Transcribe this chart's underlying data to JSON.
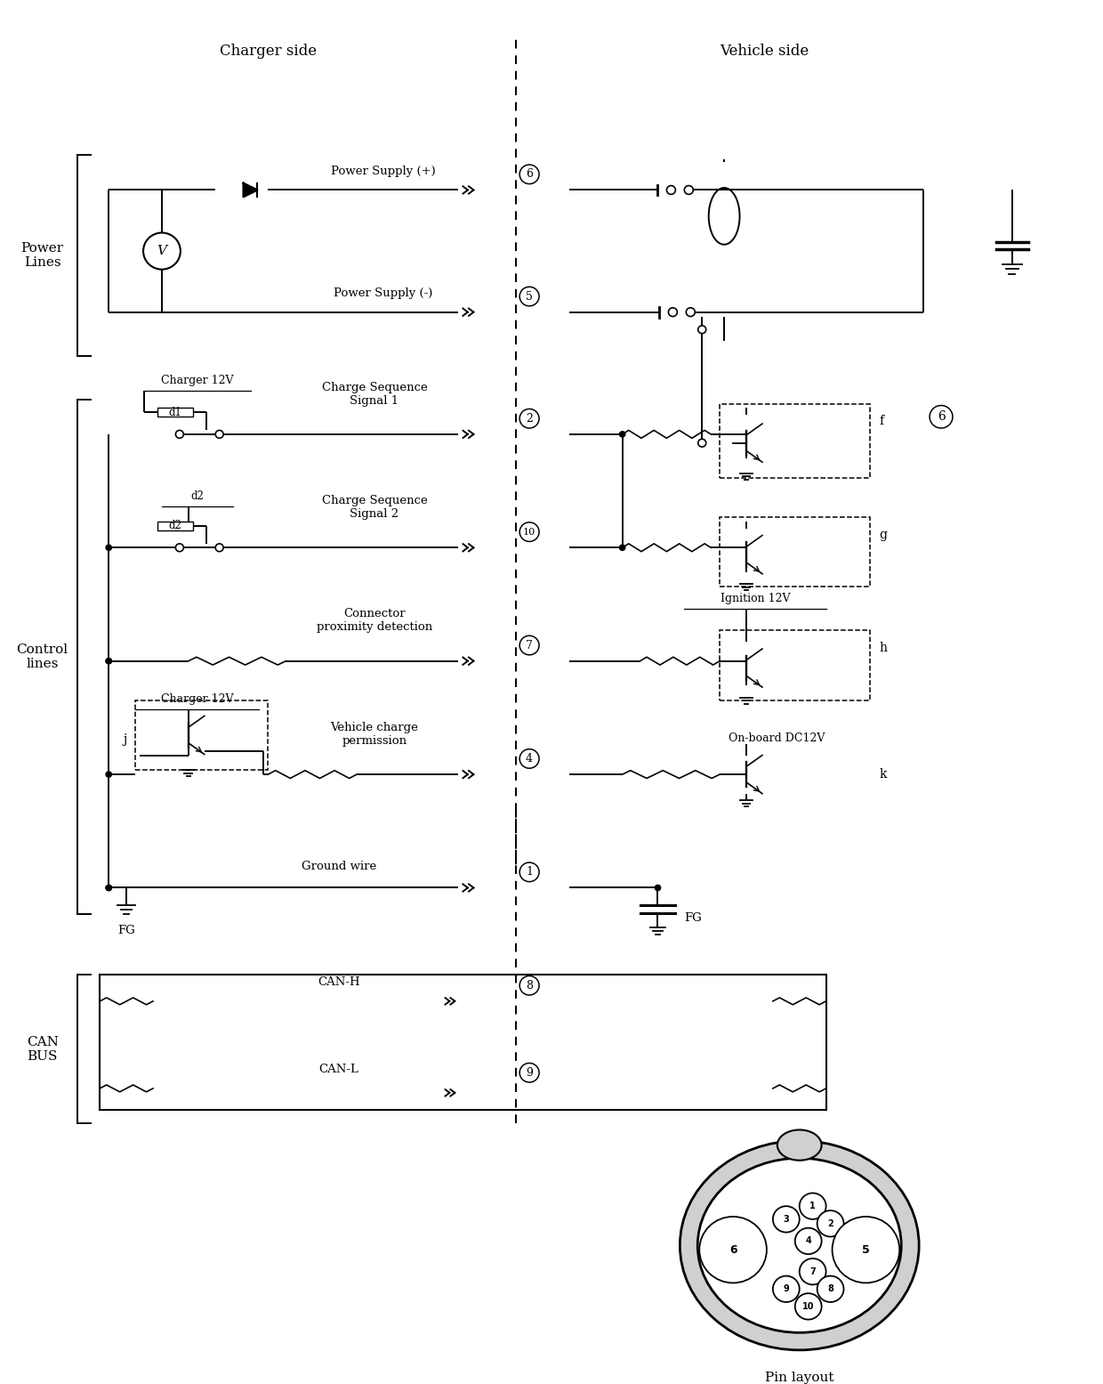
{
  "bg_color": "#ffffff",
  "charger_side_label": "Charger side",
  "vehicle_side_label": "Vehicle side",
  "power_lines_label": "Power\nLines",
  "control_lines_label": "Control\nlines",
  "can_bus_label": "CAN\nBUS",
  "pin_layout_label": "Pin layout"
}
